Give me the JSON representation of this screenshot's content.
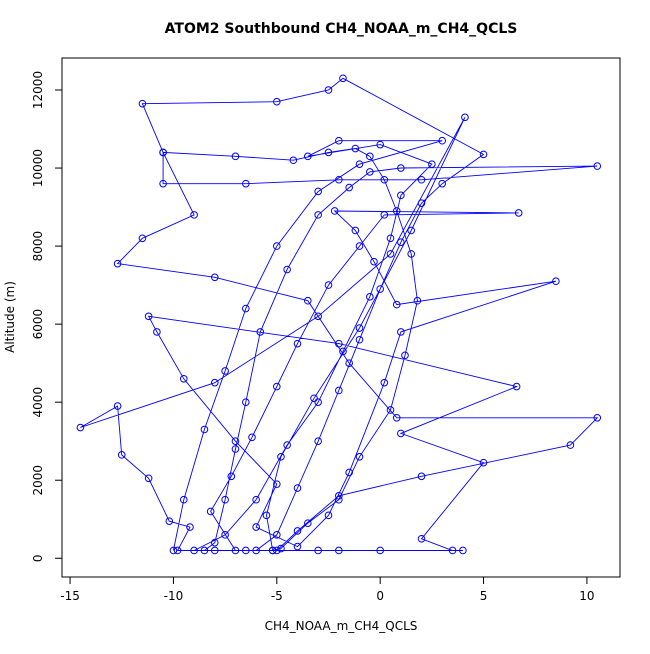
{
  "chart_data": {
    "type": "line",
    "title": "ATOM2 Southbound CH4_NOAA_m_CH4_QCLS",
    "x_label": "CH4_NOAA_m_CH4_QCLS",
    "y_label": "Altitude (m)",
    "color": "#0000ff",
    "marker": "open-circle",
    "x": [
      -5.2,
      -4.8,
      -3.5,
      -2.0,
      -1.0,
      0.5,
      1.2,
      1.8,
      1.5,
      0.8,
      0.2,
      -0.5,
      -1.2,
      -2.5,
      -4.2,
      -7.0,
      -10.5,
      -10.5,
      -6.5,
      -2.0,
      2.0,
      10.5,
      1.0,
      -0.5,
      -1.5,
      -3.0,
      -4.5,
      -5.8,
      -6.5,
      -7.0,
      -7.5,
      -8.0,
      -8.5,
      -9.8,
      -9.2,
      -10.2,
      -11.2,
      -12.5,
      -12.7,
      -14.5,
      -8.0,
      -3.0,
      0.5,
      4.1,
      1.5,
      -1.0,
      -3.2,
      -4.8,
      -5.5,
      -5.2,
      -3.0,
      -2.0,
      0.0,
      4.0,
      3.5,
      2.0,
      5.0,
      1.0,
      6.6,
      -2.0,
      -11.2,
      -10.8,
      -9.5,
      -7.0,
      -5.0,
      -6.0,
      -4.0,
      -2.5,
      -1.5,
      0.2,
      1.0,
      8.5,
      0.8,
      -0.3,
      -1.2,
      -2.2,
      6.7,
      0.2,
      -1.0,
      -2.5,
      -4.0,
      -5.0,
      -6.2,
      -7.2,
      -8.2,
      -7.0,
      -6.0,
      -5.0,
      -4.0,
      -3.0,
      -2.0,
      -1.0,
      0.0,
      1.0,
      2.0,
      3.0,
      5.0,
      -1.8,
      -2.5,
      -5.0,
      -11.5,
      -10.5,
      -9.0,
      -11.5,
      -12.7,
      -8.0,
      -3.5,
      -1.5,
      0.8,
      10.5,
      9.2,
      2.0,
      -2.0,
      -4.0,
      -5.0,
      -6.5,
      -8.0,
      -9.0,
      -7.5,
      -6.0,
      -4.5,
      -3.0,
      -1.8,
      -0.5,
      0.5,
      1.0,
      2.5,
      0.0,
      -3.5,
      -2.0,
      3.0,
      -1.0,
      -3.0,
      -5.0,
      -6.5,
      -7.5,
      -8.5,
      -9.5,
      -10.0
    ],
    "values": [
      200,
      250,
      900,
      1500,
      2600,
      3800,
      5200,
      6600,
      7800,
      8900,
      9700,
      10300,
      10500,
      10400,
      10200,
      10300,
      10400,
      9600,
      9600,
      9700,
      9700,
      10050,
      10000,
      9900,
      9500,
      8800,
      7400,
      5800,
      4000,
      2800,
      1500,
      400,
      200,
      200,
      800,
      950,
      2050,
      2650,
      3900,
      3350,
      4500,
      6200,
      7800,
      11300,
      8400,
      5900,
      4100,
      2600,
      1100,
      200,
      200,
      200,
      200,
      200,
      200,
      500,
      2450,
      3200,
      4400,
      5500,
      6200,
      5800,
      4600,
      3000,
      1900,
      800,
      300,
      1100,
      2200,
      4500,
      5800,
      7100,
      6500,
      7600,
      8400,
      8900,
      8850,
      8800,
      8000,
      7000,
      5500,
      4400,
      3100,
      2100,
      1200,
      200,
      200,
      600,
      1800,
      3000,
      4300,
      5600,
      6900,
      8100,
      9100,
      9600,
      10350,
      12300,
      12000,
      11700,
      11650,
      10400,
      8800,
      8200,
      7550,
      7200,
      6600,
      5000,
      3600,
      3600,
      2900,
      2100,
      1600,
      700,
      200,
      200,
      200,
      200,
      600,
      1500,
      2900,
      4000,
      5300,
      6700,
      8200,
      9300,
      10100,
      10600,
      10300,
      10700,
      10700,
      10100,
      9400,
      8000,
      6400,
      4800,
      3300,
      1500,
      200
    ],
    "xlim": [
      -15.39,
      11.6
    ],
    "ylim": [
      -480,
      12820
    ],
    "xticks": [
      -15,
      -10,
      -5,
      0,
      5,
      10
    ],
    "yticks": [
      0,
      2000,
      4000,
      6000,
      8000,
      10000,
      12000
    ]
  }
}
